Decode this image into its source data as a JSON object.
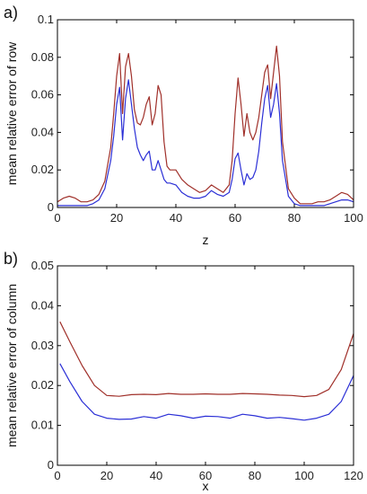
{
  "chart_data": [
    {
      "panel_label": "a)",
      "type": "line",
      "xlabel": "z",
      "ylabel": "mean relative error of row",
      "xlim": [
        0,
        100
      ],
      "ylim": [
        0,
        0.1
      ],
      "xticks": [
        0,
        20,
        40,
        60,
        80,
        100
      ],
      "yticks": [
        0,
        0.02,
        0.04,
        0.06,
        0.08,
        0.1
      ],
      "xtick_labels": [
        "0",
        "20",
        "40",
        "60",
        "80",
        "100"
      ],
      "ytick_labels": [
        "0",
        "0.02",
        "0.04",
        "0.06",
        "0.08",
        "0.1"
      ],
      "series": [
        {
          "color": "#a0302a",
          "x": [
            0,
            2,
            4,
            6,
            8,
            10,
            12,
            14,
            16,
            18,
            19,
            20,
            21,
            22,
            23,
            24,
            25,
            26,
            27,
            28,
            29,
            30,
            31,
            32,
            33,
            34,
            35,
            36,
            37,
            38,
            40,
            42,
            44,
            46,
            48,
            50,
            52,
            54,
            56,
            58,
            59,
            60,
            61,
            62,
            63,
            64,
            65,
            66,
            67,
            68,
            69,
            70,
            71,
            72,
            73,
            74,
            75,
            76,
            78,
            80,
            82,
            84,
            86,
            88,
            90,
            92,
            94,
            96,
            98,
            100
          ],
          "y": [
            0.003,
            0.005,
            0.006,
            0.005,
            0.003,
            0.003,
            0.004,
            0.007,
            0.014,
            0.032,
            0.05,
            0.07,
            0.082,
            0.05,
            0.075,
            0.082,
            0.07,
            0.052,
            0.045,
            0.044,
            0.048,
            0.055,
            0.059,
            0.044,
            0.05,
            0.065,
            0.06,
            0.035,
            0.022,
            0.02,
            0.02,
            0.015,
            0.012,
            0.01,
            0.008,
            0.009,
            0.012,
            0.01,
            0.008,
            0.012,
            0.025,
            0.05,
            0.069,
            0.055,
            0.038,
            0.05,
            0.04,
            0.036,
            0.04,
            0.048,
            0.06,
            0.072,
            0.076,
            0.058,
            0.072,
            0.086,
            0.07,
            0.035,
            0.01,
            0.005,
            0.002,
            0.002,
            0.002,
            0.003,
            0.003,
            0.004,
            0.006,
            0.008,
            0.007,
            0.004
          ]
        },
        {
          "color": "#2b2fd6",
          "x": [
            0,
            2,
            4,
            6,
            8,
            10,
            12,
            14,
            16,
            18,
            19,
            20,
            21,
            22,
            23,
            24,
            25,
            26,
            27,
            28,
            29,
            30,
            31,
            32,
            33,
            34,
            35,
            36,
            37,
            38,
            40,
            42,
            44,
            46,
            48,
            50,
            52,
            54,
            56,
            58,
            59,
            60,
            61,
            62,
            63,
            64,
            65,
            66,
            67,
            68,
            69,
            70,
            71,
            72,
            73,
            74,
            75,
            76,
            78,
            80,
            82,
            84,
            86,
            88,
            90,
            92,
            94,
            96,
            98,
            100
          ],
          "y": [
            0.001,
            0.001,
            0.001,
            0.001,
            0.001,
            0.001,
            0.002,
            0.004,
            0.01,
            0.025,
            0.038,
            0.055,
            0.064,
            0.036,
            0.058,
            0.068,
            0.055,
            0.042,
            0.032,
            0.028,
            0.025,
            0.028,
            0.03,
            0.02,
            0.02,
            0.025,
            0.02,
            0.015,
            0.013,
            0.013,
            0.012,
            0.008,
            0.006,
            0.005,
            0.005,
            0.006,
            0.009,
            0.007,
            0.006,
            0.008,
            0.015,
            0.026,
            0.029,
            0.02,
            0.012,
            0.018,
            0.015,
            0.016,
            0.02,
            0.03,
            0.045,
            0.058,
            0.065,
            0.048,
            0.055,
            0.066,
            0.05,
            0.025,
            0.006,
            0.002,
            0.001,
            0.001,
            0.001,
            0.001,
            0.001,
            0.002,
            0.003,
            0.004,
            0.004,
            0.003
          ]
        }
      ]
    },
    {
      "panel_label": "b)",
      "type": "line",
      "xlabel": "x",
      "ylabel": "mean relative error of column",
      "xlim": [
        0,
        120
      ],
      "ylim": [
        0,
        0.05
      ],
      "xticks": [
        0,
        20,
        40,
        60,
        80,
        100,
        120
      ],
      "yticks": [
        0,
        0.01,
        0.02,
        0.03,
        0.04,
        0.05
      ],
      "xtick_labels": [
        "0",
        "20",
        "40",
        "60",
        "80",
        "100",
        "120"
      ],
      "ytick_labels": [
        "0",
        "0.01",
        "0.02",
        "0.03",
        "0.04",
        "0.05"
      ],
      "series": [
        {
          "color": "#a0302a",
          "x": [
            1,
            5,
            10,
            15,
            20,
            25,
            30,
            35,
            40,
            45,
            50,
            55,
            60,
            65,
            70,
            75,
            80,
            85,
            90,
            95,
            100,
            105,
            110,
            115,
            120
          ],
          "y": [
            0.036,
            0.031,
            0.025,
            0.02,
            0.0175,
            0.0173,
            0.0177,
            0.0178,
            0.0177,
            0.018,
            0.0178,
            0.0178,
            0.0179,
            0.0178,
            0.0178,
            0.018,
            0.0179,
            0.0178,
            0.0176,
            0.0175,
            0.0172,
            0.0175,
            0.019,
            0.024,
            0.033
          ]
        },
        {
          "color": "#2b2fd6",
          "x": [
            1,
            5,
            10,
            15,
            20,
            25,
            30,
            35,
            40,
            45,
            50,
            55,
            60,
            65,
            70,
            75,
            80,
            85,
            90,
            95,
            100,
            105,
            110,
            115,
            120
          ],
          "y": [
            0.0255,
            0.021,
            0.016,
            0.0128,
            0.0118,
            0.0115,
            0.0116,
            0.0122,
            0.0118,
            0.0128,
            0.0124,
            0.0118,
            0.0123,
            0.0122,
            0.0118,
            0.0128,
            0.0124,
            0.0118,
            0.012,
            0.0117,
            0.0113,
            0.0118,
            0.0128,
            0.016,
            0.0225
          ]
        }
      ]
    }
  ]
}
